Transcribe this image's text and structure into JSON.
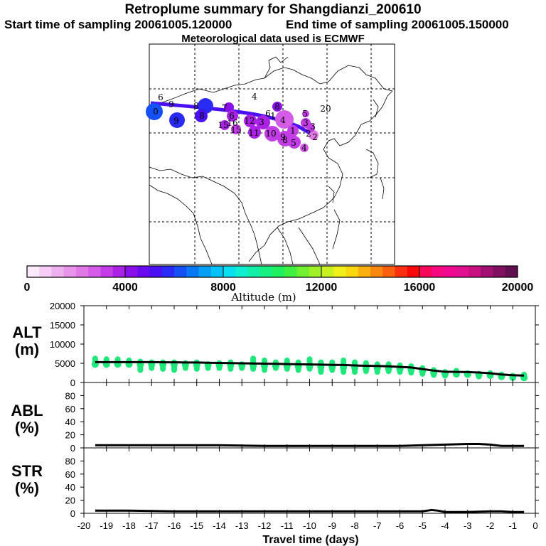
{
  "titles": {
    "main": "Retroplume summary for Shangdianzi_200610",
    "start": "Start time of sampling 20061005.120000",
    "end": "End time of sampling 20061005.150000",
    "met": "Meteorological data used is ECMWF"
  },
  "colorbar": {
    "ticks": [
      "0",
      "4000",
      "8000",
      "12000",
      "16000",
      "20000"
    ],
    "label": "Altitude (m)",
    "colors": [
      "#fbeafb",
      "#f5cdf5",
      "#eeb0ef",
      "#e794ea",
      "#e079e6",
      "#d45ce6",
      "#c23de6",
      "#aa22e6",
      "#8a10ea",
      "#6a0aef",
      "#4a10f2",
      "#2a2af5",
      "#1550f5",
      "#0a78f5",
      "#05a0f5",
      "#05c4f5",
      "#08e0f0",
      "#10f0d0",
      "#12f0a8",
      "#15f080",
      "#20f060",
      "#40f040",
      "#70f030",
      "#a0f028",
      "#c8f020",
      "#f0f018",
      "#f8d810",
      "#f8b010",
      "#f88810",
      "#f86010",
      "#f83010",
      "#f80808",
      "#f8085a",
      "#f80880",
      "#f00890",
      "#e01090",
      "#c81080",
      "#a01070",
      "#801060",
      "#601050"
    ]
  },
  "map_labels": [
    {
      "t": "0",
      "x": 219,
      "y": 157
    },
    {
      "t": "9",
      "x": 241,
      "y": 147
    },
    {
      "t": "9",
      "x": 248,
      "y": 170
    },
    {
      "t": "8",
      "x": 276,
      "y": 149
    },
    {
      "t": "8",
      "x": 284,
      "y": 163
    },
    {
      "t": "6",
      "x": 226,
      "y": 137
    },
    {
      "t": "4",
      "x": 358,
      "y": 136
    },
    {
      "t": "7",
      "x": 316,
      "y": 152
    },
    {
      "t": "6",
      "x": 326,
      "y": 163
    },
    {
      "t": "15",
      "x": 314,
      "y": 176
    },
    {
      "t": "16",
      "x": 327,
      "y": 173
    },
    {
      "t": "15",
      "x": 332,
      "y": 183
    },
    {
      "t": "12",
      "x": 351,
      "y": 170
    },
    {
      "t": "11",
      "x": 357,
      "y": 187
    },
    {
      "t": "3",
      "x": 368,
      "y": 172
    },
    {
      "t": "6",
      "x": 377,
      "y": 160
    },
    {
      "t": "1",
      "x": 384,
      "y": 163
    },
    {
      "t": "8",
      "x": 390,
      "y": 150
    },
    {
      "t": "10",
      "x": 381,
      "y": 188
    },
    {
      "t": "4",
      "x": 398,
      "y": 169
    },
    {
      "t": "9",
      "x": 398,
      "y": 193
    },
    {
      "t": "8",
      "x": 401,
      "y": 197
    },
    {
      "t": "5",
      "x": 413,
      "y": 201
    },
    {
      "t": "4",
      "x": 428,
      "y": 208
    },
    {
      "t": "1",
      "x": 412,
      "y": 184
    },
    {
      "t": "3",
      "x": 430,
      "y": 173
    },
    {
      "t": "2",
      "x": 434,
      "y": 188
    },
    {
      "t": "2",
      "x": 443,
      "y": 193
    },
    {
      "t": "20",
      "x": 458,
      "y": 153
    },
    {
      "t": "5",
      "x": 429,
      "y": 160
    },
    {
      "t": "3",
      "x": 440,
      "y": 178
    }
  ],
  "chart_data": [
    {
      "type": "scatter",
      "title": "ALT (m)",
      "ylabel": "ALT (m)",
      "xlabel": "Travel time (days)",
      "ylim": [
        0,
        20000
      ],
      "yticks": [
        "20000",
        "15000",
        "10000",
        "5000",
        "0"
      ],
      "x": [
        -19.5,
        -19,
        -18.5,
        -18,
        -17.5,
        -17,
        -16.5,
        -16,
        -15.5,
        -15,
        -14.5,
        -14,
        -13.5,
        -13,
        -12.5,
        -12,
        -11.5,
        -11,
        -10.5,
        -10,
        -9.5,
        -9,
        -8.5,
        -8,
        -7.5,
        -7,
        -6.5,
        -6,
        -5.5,
        -5,
        -4.5,
        -4,
        -3.5,
        -3,
        -2.5,
        -2,
        -1.5,
        -1,
        -0.5
      ],
      "median_altitude_m": [
        5300,
        5300,
        5300,
        5300,
        5300,
        5300,
        5250,
        5250,
        5200,
        5200,
        5150,
        5100,
        5050,
        5000,
        4950,
        4900,
        4850,
        4800,
        4750,
        4700,
        4650,
        4600,
        4550,
        4450,
        4350,
        4300,
        4200,
        4050,
        3900,
        3500,
        3100,
        2800,
        2750,
        2700,
        2600,
        2400,
        2100,
        1900,
        1800
      ],
      "particle_range_m": [
        [
          4000,
          7000
        ],
        [
          4000,
          6800
        ],
        [
          4200,
          6800
        ],
        [
          4000,
          6500
        ],
        [
          2500,
          6200
        ],
        [
          3000,
          6000
        ],
        [
          2800,
          6000
        ],
        [
          2500,
          6000
        ],
        [
          3000,
          5800
        ],
        [
          2800,
          6000
        ],
        [
          3000,
          5500
        ],
        [
          3000,
          5800
        ],
        [
          2800,
          6000
        ],
        [
          3000,
          5500
        ],
        [
          2800,
          7000
        ],
        [
          2500,
          6500
        ],
        [
          3000,
          6000
        ],
        [
          2800,
          6500
        ],
        [
          2500,
          6000
        ],
        [
          2800,
          6800
        ],
        [
          2000,
          6000
        ],
        [
          2500,
          6000
        ],
        [
          2000,
          6500
        ],
        [
          2000,
          6000
        ],
        [
          2200,
          5800
        ],
        [
          2000,
          5500
        ],
        [
          2200,
          5500
        ],
        [
          2000,
          5200
        ],
        [
          1800,
          5000
        ],
        [
          1500,
          4500
        ],
        [
          1200,
          4000
        ],
        [
          1000,
          3500
        ],
        [
          1500,
          3800
        ],
        [
          1200,
          3200
        ],
        [
          800,
          3000
        ],
        [
          1000,
          3200
        ],
        [
          1000,
          2800
        ],
        [
          800,
          2500
        ],
        [
          500,
          2800
        ]
      ]
    },
    {
      "type": "line",
      "title": "ABL (%)",
      "ylabel": "ABL (%)",
      "xlabel": "Travel time (days)",
      "ylim": [
        0,
        100
      ],
      "yticks": [
        "80",
        "60",
        "40",
        "20",
        "0"
      ],
      "x": [
        -19.5,
        -18,
        -16,
        -14,
        -12,
        -10,
        -8,
        -6,
        -5,
        -4,
        -3,
        -2.5,
        -2,
        -1.5,
        -1,
        -0.5
      ],
      "values": [
        4,
        4,
        4,
        4,
        3,
        3,
        3,
        3,
        4,
        5,
        6,
        6,
        5,
        3,
        3,
        3
      ]
    },
    {
      "type": "line",
      "title": "STR (%)",
      "ylabel": "STR (%)",
      "xlabel": "Travel time (days)",
      "ylim": [
        0,
        100
      ],
      "yticks": [
        "80",
        "60",
        "40",
        "20",
        "0"
      ],
      "x": [
        -19.5,
        -18,
        -16,
        -14,
        -12,
        -10,
        -8,
        -6,
        -5,
        -4.8,
        -4.6,
        -4.3,
        -4,
        -3,
        -2,
        -1.5,
        -1,
        -0.5
      ],
      "values": [
        4,
        4,
        3,
        3,
        3,
        3,
        3,
        3,
        3,
        4,
        5,
        4,
        2,
        2,
        3,
        3,
        2,
        2
      ]
    }
  ],
  "xaxis": {
    "ticks": [
      "-20",
      "-19",
      "-18",
      "-17",
      "-16",
      "-15",
      "-14",
      "-13",
      "-12",
      "-11",
      "-10",
      "-9",
      "-8",
      "-7",
      "-6",
      "-5",
      "-4",
      "-3",
      "-2",
      "-1",
      "0"
    ],
    "label": "Travel time (days)"
  }
}
